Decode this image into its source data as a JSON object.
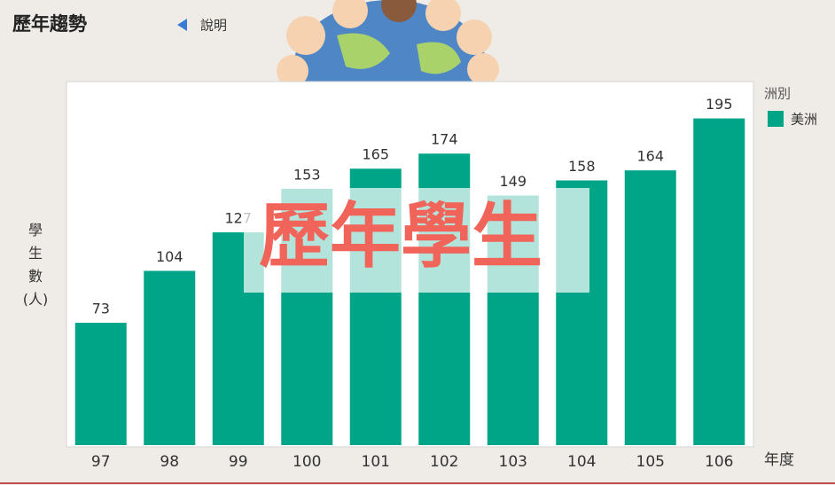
{
  "header": {
    "title": "歷年趨勢",
    "help": "說明"
  },
  "overlay": "歷年學生",
  "chart_data": {
    "type": "bar",
    "y_label": "學生數(人)",
    "x_label": "年度",
    "legend_title": "洲別",
    "categories": [
      "97",
      "98",
      "99",
      "100",
      "101",
      "102",
      "103",
      "104",
      "105",
      "106"
    ],
    "series": [
      {
        "name": "美洲",
        "color": "#00a587",
        "values": [
          73,
          104,
          127,
          153,
          165,
          174,
          149,
          158,
          164,
          195
        ]
      }
    ],
    "ylim": [
      0,
      217
    ],
    "legend": "right"
  }
}
